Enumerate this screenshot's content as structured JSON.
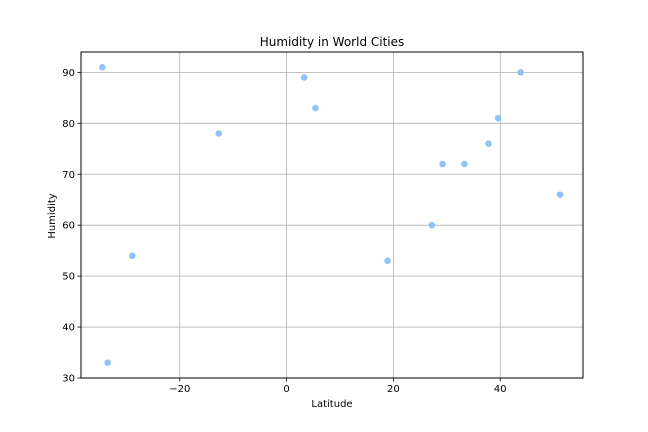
{
  "chart_data": {
    "type": "scatter",
    "title": "Humidity in World Cities",
    "xlabel": "Latitude",
    "ylabel": "Humidity",
    "xlim": [
      -38.5,
      55.5
    ],
    "ylim": [
      30,
      94
    ],
    "x_ticks": [
      -20,
      0,
      20,
      40
    ],
    "y_ticks": [
      30,
      40,
      50,
      60,
      70,
      80,
      90
    ],
    "grid": true,
    "marker_color": "#8fc3f5",
    "points": [
      {
        "x": -34.5,
        "y": 91
      },
      {
        "x": -33.5,
        "y": 33
      },
      {
        "x": -28.9,
        "y": 54
      },
      {
        "x": -12.7,
        "y": 78
      },
      {
        "x": 3.3,
        "y": 89
      },
      {
        "x": 5.4,
        "y": 83
      },
      {
        "x": 18.9,
        "y": 53
      },
      {
        "x": 27.2,
        "y": 60
      },
      {
        "x": 29.2,
        "y": 72
      },
      {
        "x": 33.3,
        "y": 72
      },
      {
        "x": 37.8,
        "y": 76
      },
      {
        "x": 39.6,
        "y": 81
      },
      {
        "x": 43.8,
        "y": 90
      },
      {
        "x": 51.2,
        "y": 66
      }
    ]
  }
}
